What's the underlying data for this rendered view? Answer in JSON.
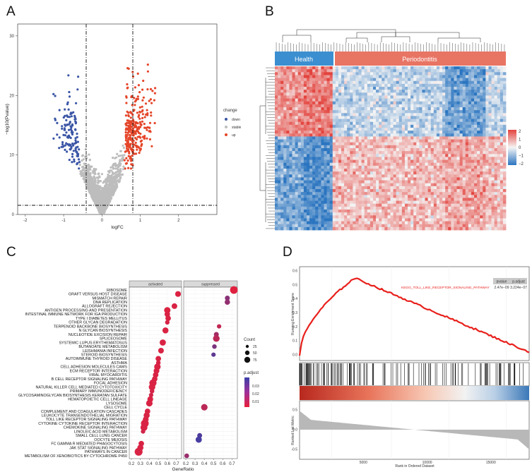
{
  "panels": {
    "a": "A",
    "b": "B",
    "c": "C",
    "d": "D"
  },
  "chart_data": [
    {
      "panel": "A",
      "type": "scatter",
      "title": "",
      "xlabel": "logFC",
      "ylabel": "−log10(Pvalue)",
      "xlim": [
        -2.2,
        3.0
      ],
      "ylim": [
        0,
        32
      ],
      "xticks": [
        "-2",
        "-1",
        "0",
        "1",
        "2"
      ],
      "yticks": [
        "0",
        "10",
        "20",
        "30"
      ],
      "thresholds": {
        "logfc": [
          -0.585,
          0.585
        ],
        "neglog10p": 1.3
      },
      "legend": {
        "title": "change",
        "entries": [
          {
            "label": "down",
            "color": "#3b56a6"
          },
          {
            "label": "stable",
            "color": "#bdbdbd"
          },
          {
            "label": "up",
            "color": "#e5462a"
          }
        ]
      }
    },
    {
      "panel": "B",
      "type": "heatmap",
      "groups": [
        {
          "label": "Health",
          "color": "#3b8fd0"
        },
        {
          "label": "Periodontitis",
          "color": "#e87464"
        }
      ],
      "scale": {
        "ticks": [
          "2",
          "1",
          "0",
          "−1",
          "−2"
        ],
        "low": "#2b75c0",
        "mid": "#f5f5f5",
        "high": "#e3433d"
      }
    },
    {
      "panel": "C",
      "type": "scatter",
      "xlabel": "GeneRatio",
      "facets": [
        "activated",
        "suppressed"
      ],
      "xticks_activated": [
        "0.2",
        "0.3",
        "0.4",
        "0.5",
        "0.6",
        "0.7"
      ],
      "xticks_suppressed": [
        "0.2",
        "0.3",
        "0.4",
        "0.5",
        "0.6",
        "0.7"
      ],
      "size_legend": {
        "title": "Count",
        "values": [
          "25",
          "50",
          "75"
        ]
      },
      "color_legend": {
        "title": "p.adjust",
        "ticks": [
          "0.03",
          "0.02",
          "0.01"
        ]
      },
      "terms": [
        {
          "label": "RIBOSOME",
          "facet": "suppressed",
          "x": 0.72,
          "count": 80,
          "p": 0.002
        },
        {
          "label": "GRAFT VERSUS HOST DISEASE",
          "facet": "activated",
          "x": 0.72,
          "count": 35,
          "p": 0.003
        },
        {
          "label": "MISMATCH REPAIR",
          "facet": "suppressed",
          "x": 0.65,
          "count": 20,
          "p": 0.025
        },
        {
          "label": "DNA REPLICATION",
          "facet": "suppressed",
          "x": 0.65,
          "count": 28,
          "p": 0.022
        },
        {
          "label": "ALLOGRAFT REJECTION",
          "facet": "activated",
          "x": 0.68,
          "count": 32,
          "p": 0.004
        },
        {
          "label": "ANTIGEN PROCESSING AND PRESENTATION",
          "facet": "activated",
          "x": 0.6,
          "count": 48,
          "p": 0.003
        },
        {
          "label": "INTESTINAL IMMUNE NETWORK FOR IGA PRODUCTION",
          "facet": "activated",
          "x": 0.6,
          "count": 30,
          "p": 0.004
        },
        {
          "label": "TYPE I DIABETES MELLITUS",
          "facet": "activated",
          "x": 0.61,
          "count": 30,
          "p": 0.004
        },
        {
          "label": "OTHER GLYCAN DEGRADATION",
          "facet": "activated",
          "x": 0.6,
          "count": 14,
          "p": 0.005
        },
        {
          "label": "TERPENOID BACKBONE BIOSYNTHESIS",
          "facet": "suppressed",
          "x": 0.56,
          "count": 12,
          "p": 0.01
        },
        {
          "label": "N GLYCAN BIOSYNTHESIS",
          "facet": "activated",
          "x": 0.58,
          "count": 40,
          "p": 0.004
        },
        {
          "label": "NUCLEOTIDE EXCISION REPAIR",
          "facet": "suppressed",
          "x": 0.53,
          "count": 20,
          "p": 0.018
        },
        {
          "label": "SPLICEOSOME",
          "facet": "suppressed",
          "x": 0.53,
          "count": 55,
          "p": 0.012
        },
        {
          "label": "SYSTEMIC LUPUS ERYTHEMATOSUS",
          "facet": "activated",
          "x": 0.55,
          "count": 45,
          "p": 0.004
        },
        {
          "label": "BUTANOATE METABOLISM",
          "facet": "suppressed",
          "x": 0.51,
          "count": 14,
          "p": 0.028
        },
        {
          "label": "LEISHMANIA INFECTION",
          "facet": "activated",
          "x": 0.53,
          "count": 32,
          "p": 0.004
        },
        {
          "label": "STEROID BIOSYNTHESIS",
          "facet": "suppressed",
          "x": 0.5,
          "count": 12,
          "p": 0.036
        },
        {
          "label": "AUTOIMMUNE THYROID DISEASE",
          "facet": "activated",
          "x": 0.5,
          "count": 30,
          "p": 0.004
        },
        {
          "label": "ASTHMA",
          "facet": "activated",
          "x": 0.5,
          "count": 14,
          "p": 0.005
        },
        {
          "label": "CELL ADHESION MOLECULES CAMS",
          "facet": "activated",
          "x": 0.49,
          "count": 50,
          "p": 0.004
        },
        {
          "label": "ECM RECEPTOR INTERACTION",
          "facet": "activated",
          "x": 0.48,
          "count": 36,
          "p": 0.004
        },
        {
          "label": "VIRAL MYOCARDITIS",
          "facet": "activated",
          "x": 0.47,
          "count": 30,
          "p": 0.004
        },
        {
          "label": "B CELL RECEPTOR SIGNALING PATHWAY",
          "facet": "activated",
          "x": 0.46,
          "count": 30,
          "p": 0.004
        },
        {
          "label": "FOCAL ADHESION",
          "facet": "activated",
          "x": 0.44,
          "count": 70,
          "p": 0.004
        },
        {
          "label": "NATURAL KILLER CELL MEDIATED CYTOTOXICITY",
          "facet": "activated",
          "x": 0.43,
          "count": 50,
          "p": 0.004
        },
        {
          "label": "PRIMARY IMMUNODEFICIENCY",
          "facet": "activated",
          "x": 0.43,
          "count": 16,
          "p": 0.005
        },
        {
          "label": "GLYCOSAMINOGLYCAN BIOSYNTHESIS KERATAN SULFATE",
          "facet": "activated",
          "x": 0.42,
          "count": 12,
          "p": 0.006
        },
        {
          "label": "HEMATOPOIETIC CELL LINEAGE",
          "facet": "activated",
          "x": 0.41,
          "count": 35,
          "p": 0.004
        },
        {
          "label": "LYSOSOME",
          "facet": "activated",
          "x": 0.4,
          "count": 50,
          "p": 0.004
        },
        {
          "label": "CELL CYCLE",
          "facet": "suppressed",
          "x": 0.4,
          "count": 50,
          "p": 0.012
        },
        {
          "label": "COMPLEMENT AND COAGULATION CASCADES",
          "facet": "activated",
          "x": 0.38,
          "count": 30,
          "p": 0.004
        },
        {
          "label": "LEUKOCYTE TRANSENDOTHELIAL MIGRATION",
          "facet": "activated",
          "x": 0.37,
          "count": 40,
          "p": 0.004
        },
        {
          "label": "TOLL LIKE RECEPTOR SIGNALING PATHWAY",
          "facet": "activated",
          "x": 0.36,
          "count": 36,
          "p": 0.004
        },
        {
          "label": "CYTOKINE CYTOKINE RECEPTOR INTERACTION",
          "facet": "activated",
          "x": 0.35,
          "count": 85,
          "p": 0.004
        },
        {
          "label": "CHEMOKINE SIGNALING PATHWAY",
          "facet": "activated",
          "x": 0.34,
          "count": 60,
          "p": 0.004
        },
        {
          "label": "LINOLEIC ACID METABOLISM",
          "facet": "activated",
          "x": 0.33,
          "count": 12,
          "p": 0.006
        },
        {
          "label": "SMALL CELL LUNG CANCER",
          "facet": "suppressed",
          "x": 0.35,
          "count": 20,
          "p": 0.04
        },
        {
          "label": "OOCYTE MEIOSIS",
          "facet": "suppressed",
          "x": 0.34,
          "count": 45,
          "p": 0.042
        },
        {
          "label": "FC GAMMA R MEDIATED PHAGOCYTOSIS",
          "facet": "activated",
          "x": 0.31,
          "count": 30,
          "p": 0.004
        },
        {
          "label": "JAK STAT SIGNALING PATHWAY",
          "facet": "activated",
          "x": 0.3,
          "count": 42,
          "p": 0.004
        },
        {
          "label": "PATHWAYS IN CANCER",
          "facet": "activated",
          "x": 0.28,
          "count": 90,
          "p": 0.004
        },
        {
          "label": "METABOLISM OF XENOBIOTICS BY CYTOCHROME P450",
          "facet": "suppressed",
          "x": 0.21,
          "count": 16,
          "p": 0.02
        }
      ]
    },
    {
      "panel": "D",
      "type": "line",
      "ylabel_top": "Running Enrichment Score",
      "ylabel_bottom": "Ranked List Metric",
      "xlabel": "Rank in Ordered Dataset",
      "pathway": "KEGG_TOLL_LIKE_RECEPTOR_SIGNALING_PATHWAY",
      "table": {
        "headers": [
          "pvalue",
          "p.adjust"
        ],
        "values": [
          "2.47e−09",
          "3.224e−07"
        ]
      },
      "yticks_top": [
        "0.6",
        "0.5",
        "0.4",
        "0.3",
        "0.2",
        "0.1",
        "0.0"
      ],
      "yticks_bottom": [
        "0.5",
        "0.0",
        "-0.5"
      ],
      "xticks": [
        "5000",
        "10000",
        "15000"
      ]
    }
  ]
}
